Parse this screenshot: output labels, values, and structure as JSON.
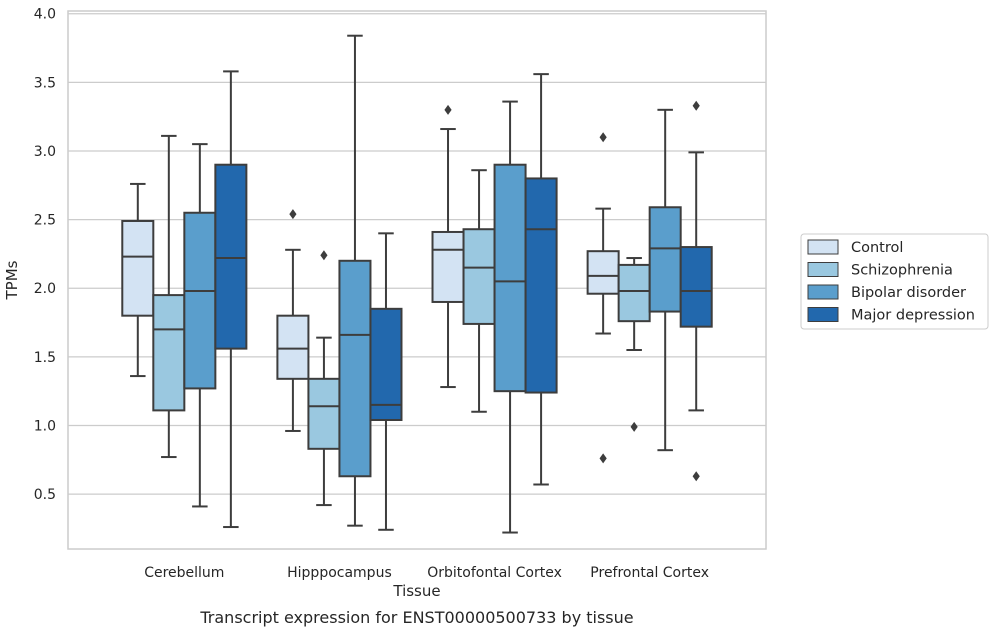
{
  "chart_data": {
    "type": "box",
    "ylabel": "TPMs",
    "xlabel": "Tissue",
    "caption": "Transcript expression for ENST00000500733 by tissue",
    "ylim": [
      0.1,
      4.02
    ],
    "yticks": [
      "0.5",
      "1.0",
      "1.5",
      "2.0",
      "2.5",
      "3.0",
      "3.5",
      "4.0"
    ],
    "grid": "horizontal",
    "legend_position": "right",
    "categories": [
      "Cerebellum",
      "Hipppocampus",
      "Orbitofontal Cortex",
      "Prefrontal Cortex"
    ],
    "series": [
      {
        "name": "Control",
        "color": "#d3e3f3",
        "boxes": [
          {
            "whislo": 1.36,
            "q1": 1.8,
            "med": 2.23,
            "q3": 2.49,
            "whishi": 2.76,
            "fliers": []
          },
          {
            "whislo": 0.96,
            "q1": 1.34,
            "med": 1.56,
            "q3": 1.8,
            "whishi": 2.28,
            "fliers": [
              2.54
            ]
          },
          {
            "whislo": 1.28,
            "q1": 1.9,
            "med": 2.28,
            "q3": 2.41,
            "whishi": 3.16,
            "fliers": [
              3.3
            ]
          },
          {
            "whislo": 1.67,
            "q1": 1.96,
            "med": 2.09,
            "q3": 2.27,
            "whishi": 2.58,
            "fliers": [
              3.1,
              0.76
            ]
          }
        ]
      },
      {
        "name": "Schizophrenia",
        "color": "#9ac8e0",
        "boxes": [
          {
            "whislo": 0.77,
            "q1": 1.11,
            "med": 1.7,
            "q3": 1.95,
            "whishi": 3.11,
            "fliers": []
          },
          {
            "whislo": 0.42,
            "q1": 0.83,
            "med": 1.14,
            "q3": 1.34,
            "whishi": 1.64,
            "fliers": [
              2.24
            ]
          },
          {
            "whislo": 1.1,
            "q1": 1.74,
            "med": 2.15,
            "q3": 2.43,
            "whishi": 2.86,
            "fliers": []
          },
          {
            "whislo": 1.55,
            "q1": 1.76,
            "med": 1.98,
            "q3": 2.17,
            "whishi": 2.22,
            "fliers": [
              0.99
            ]
          }
        ]
      },
      {
        "name": "Bipolar disorder",
        "color": "#5a9ecc",
        "boxes": [
          {
            "whislo": 0.41,
            "q1": 1.27,
            "med": 1.98,
            "q3": 2.55,
            "whishi": 3.05,
            "fliers": []
          },
          {
            "whislo": 0.27,
            "q1": 0.63,
            "med": 1.66,
            "q3": 2.2,
            "whishi": 3.84,
            "fliers": []
          },
          {
            "whislo": 0.22,
            "q1": 1.25,
            "med": 2.05,
            "q3": 2.9,
            "whishi": 3.36,
            "fliers": []
          },
          {
            "whislo": 0.82,
            "q1": 1.83,
            "med": 2.29,
            "q3": 2.59,
            "whishi": 3.3,
            "fliers": []
          }
        ]
      },
      {
        "name": "Major depression",
        "color": "#2268ad",
        "boxes": [
          {
            "whislo": 0.26,
            "q1": 1.56,
            "med": 2.22,
            "q3": 2.9,
            "whishi": 3.58,
            "fliers": []
          },
          {
            "whislo": 0.24,
            "q1": 1.04,
            "med": 1.15,
            "q3": 1.85,
            "whishi": 2.4,
            "fliers": []
          },
          {
            "whislo": 0.57,
            "q1": 1.24,
            "med": 2.43,
            "q3": 2.8,
            "whishi": 3.56,
            "fliers": []
          },
          {
            "whislo": 1.11,
            "q1": 1.72,
            "med": 1.98,
            "q3": 2.3,
            "whishi": 2.99,
            "fliers": [
              3.33,
              0.63
            ]
          }
        ]
      }
    ]
  }
}
